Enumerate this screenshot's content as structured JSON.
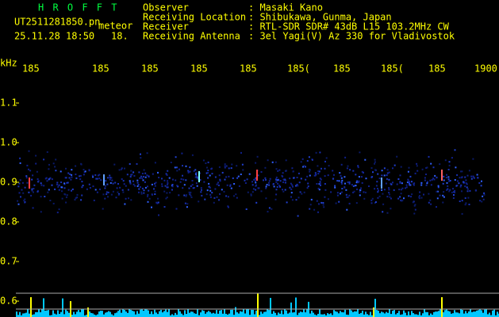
{
  "app": {
    "name": "H R O F F T",
    "file": "UT2511281850.pn",
    "file_suffix": "meteor",
    "datetime": "25.11.28 18:50",
    "minute": "18."
  },
  "header": {
    "rows": [
      {
        "label": "Observer",
        "value": ": Masaki Kano"
      },
      {
        "label": "Receiving Location",
        "value": ": Shibukawa, Gunma, Japan"
      },
      {
        "label": "Receiver",
        "value": ": RTL-SDR SDR# 43dB L15 103.2MHz CW"
      },
      {
        "label": "Receiving Antenna",
        "value": ": 3el Yagi(V) Az 330 for Vladivostok"
      }
    ]
  },
  "spectrogram": {
    "unit": "kHz",
    "freq_labels": [
      "1.1",
      "1.0",
      "0.9",
      "0.8",
      "0.7",
      "0.6"
    ],
    "time_labels": [
      "185",
      "185",
      "185",
      "185",
      "185",
      "185(",
      "185",
      "185(",
      "185",
      "1900"
    ]
  }
}
